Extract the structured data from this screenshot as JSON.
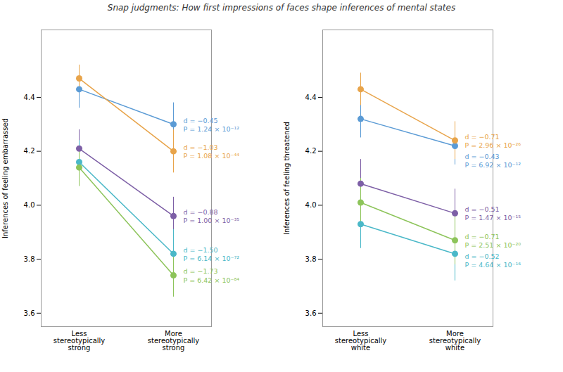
{
  "chart_data": [
    {
      "type": "line",
      "title": "Snap judgments: How first impressions of faces shape inferences of mental states",
      "ylabel": "Inferences of feeling embarrassed",
      "categories": [
        "Less\nstereotypically\nstrong",
        "More\nstereotypically\nstrong"
      ],
      "series": [
        {
          "color": "#5b9bd5",
          "values": [
            4.43,
            4.3
          ],
          "errors": [
            0.07,
            0.08
          ],
          "marker": "circle",
          "annotation": "d = −0.45\nP = 1.24 × 10⁻¹²"
        },
        {
          "color": "#e8a44a",
          "values": [
            4.47,
            4.2
          ],
          "errors": [
            0.05,
            0.08
          ],
          "marker": "circle",
          "annotation": "d = −1.03\nP = 1.08 × 10⁻⁴⁴"
        },
        {
          "color": "#7d5fa6",
          "values": [
            4.21,
            3.96
          ],
          "errors": [
            0.07,
            0.07
          ],
          "marker": "circle",
          "annotation": "d = −0.88\nP = 1.00 × 10⁻³⁵"
        },
        {
          "color": "#4ab8c8",
          "values": [
            4.16,
            3.82
          ],
          "errors": [
            0.08,
            0.09
          ],
          "marker": "circle",
          "annotation": "d = −1.50\nP = 6.14 × 10⁻⁷²"
        },
        {
          "color": "#8dc45a",
          "values": [
            4.14,
            3.74
          ],
          "errors": [
            0.07,
            0.08
          ],
          "marker": "circle",
          "annotation": "d = −1.73\nP = 6.42 × 10⁻⁸⁴"
        }
      ],
      "ylim": [
        3.55,
        4.65
      ],
      "yticks": [
        3.6,
        3.8,
        {
          "value": 4.0,
          "label": "4.0"
        },
        4.2,
        4.4
      ],
      "grid": false
    },
    {
      "type": "line",
      "ylabel": "Inferences of feeling threatened",
      "categories": [
        "Less\nstereotypically\nwhite",
        "More\nstereotypically\nwhite"
      ],
      "series": [
        {
          "color": "#5b9bd5",
          "values": [
            4.32,
            4.22
          ],
          "errors": [
            0.07,
            0.07
          ],
          "marker": "circle",
          "annotation": "d = −0.43\nP = 6.92 × 10⁻¹²"
        },
        {
          "color": "#e8a44a",
          "values": [
            4.43,
            4.24
          ],
          "errors": [
            0.06,
            0.07
          ],
          "marker": "circle",
          "annotation": "d = −0.71\nP = 2.96 × 10⁻²⁶"
        },
        {
          "color": "#7d5fa6",
          "values": [
            4.08,
            3.97
          ],
          "errors": [
            0.09,
            0.09
          ],
          "marker": "circle",
          "annotation": "d = −0.51\nP = 1.47 × 10⁻¹⁵"
        },
        {
          "color": "#4ab8c8",
          "values": [
            3.93,
            3.82
          ],
          "errors": [
            0.09,
            0.1
          ],
          "marker": "circle",
          "annotation": "d = −0.52\nP = 4.64 × 10⁻¹⁶"
        },
        {
          "color": "#8dc45a",
          "values": [
            4.01,
            3.87
          ],
          "errors": [
            0.09,
            0.09
          ],
          "marker": "circle",
          "annotation": "d = −0.71\nP = 2.51 × 10⁻²⁰"
        }
      ],
      "ylim": [
        3.55,
        4.65
      ],
      "yticks": [
        3.6,
        3.8,
        {
          "value": 4.0,
          "label": "4.0"
        },
        4.2,
        4.4
      ],
      "grid": false
    }
  ]
}
